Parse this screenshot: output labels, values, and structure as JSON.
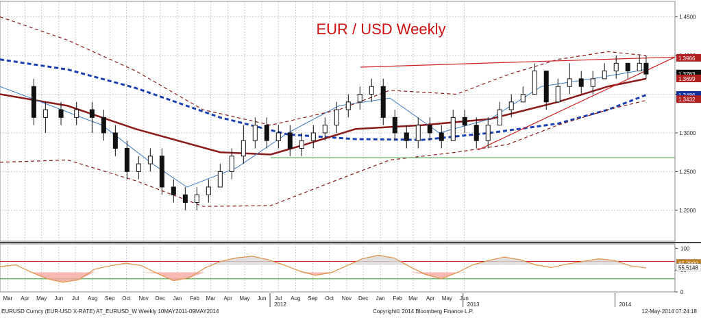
{
  "chart_data": [
    {
      "type": "candlestick",
      "title": "EUR / USD Weekly",
      "title_color": "#cc1111",
      "x_axis": {
        "month_labels": [
          "Mar",
          "Apr",
          "May",
          "Jun",
          "Jul",
          "Aug",
          "Sep",
          "Oct",
          "Nov",
          "Dec",
          "Jan",
          "Feb",
          "Mar",
          "Apr",
          "May",
          "Jun",
          "Jul",
          "Aug",
          "Sep",
          "Oct",
          "Nov",
          "Dec",
          "Jan",
          "Feb",
          "Mar",
          "Apr",
          "May",
          "Jun"
        ],
        "year_labels": [
          "2012",
          "2013",
          "2014"
        ],
        "range": [
          "2011-03-01",
          "2014-06-30"
        ]
      },
      "y_axis": {
        "ylim": [
          1.16,
          1.47
        ],
        "ticks": [
          "1.4500",
          "1.4000",
          "1.3500",
          "1.3000",
          "1.2500",
          "1.2000"
        ],
        "side": "right"
      },
      "grid": true,
      "price_tags": [
        {
          "label": "1.3966",
          "value": 1.3966,
          "bg": "#b02020",
          "fg": "#ffffff"
        },
        {
          "label": "1.3763",
          "value": 1.3763,
          "bg": "#111111",
          "fg": "#ffffff"
        },
        {
          "label": "1.3699",
          "value": 1.3699,
          "bg": "#b02020",
          "fg": "#ffffff"
        },
        {
          "label": "1.3486",
          "value": 1.3486,
          "bg": "#1030a0",
          "fg": "#ffffff"
        },
        {
          "label": "1.3432",
          "value": 1.3432,
          "bg": "#b02020",
          "fg": "#ffffff"
        }
      ],
      "candles": [
        {
          "date": "2011-05-01",
          "o": 1.36,
          "h": 1.37,
          "l": 1.31,
          "c": 1.32
        },
        {
          "date": "2011-05-22",
          "o": 1.32,
          "h": 1.34,
          "l": 1.3,
          "c": 1.33
        },
        {
          "date": "2011-06-19",
          "o": 1.33,
          "h": 1.34,
          "l": 1.31,
          "c": 1.32
        },
        {
          "date": "2011-07-17",
          "o": 1.32,
          "h": 1.34,
          "l": 1.31,
          "c": 1.33
        },
        {
          "date": "2011-08-14",
          "o": 1.33,
          "h": 1.34,
          "l": 1.3,
          "c": 1.32
        },
        {
          "date": "2011-09-04",
          "o": 1.32,
          "h": 1.33,
          "l": 1.29,
          "c": 1.3
        },
        {
          "date": "2011-09-25",
          "o": 1.3,
          "h": 1.31,
          "l": 1.27,
          "c": 1.28
        },
        {
          "date": "2011-10-16",
          "o": 1.28,
          "h": 1.29,
          "l": 1.24,
          "c": 1.25
        },
        {
          "date": "2011-11-06",
          "o": 1.25,
          "h": 1.27,
          "l": 1.24,
          "c": 1.26
        },
        {
          "date": "2011-11-27",
          "o": 1.26,
          "h": 1.28,
          "l": 1.25,
          "c": 1.27
        },
        {
          "date": "2011-12-18",
          "o": 1.27,
          "h": 1.28,
          "l": 1.22,
          "c": 1.23
        },
        {
          "date": "2012-01-08",
          "o": 1.23,
          "h": 1.24,
          "l": 1.21,
          "c": 1.22
        },
        {
          "date": "2012-01-29",
          "o": 1.22,
          "h": 1.23,
          "l": 1.2,
          "c": 1.21
        },
        {
          "date": "2012-02-19",
          "o": 1.21,
          "h": 1.23,
          "l": 1.2,
          "c": 1.22
        },
        {
          "date": "2012-03-11",
          "o": 1.22,
          "h": 1.24,
          "l": 1.21,
          "c": 1.23
        },
        {
          "date": "2012-04-01",
          "o": 1.23,
          "h": 1.26,
          "l": 1.23,
          "c": 1.25
        },
        {
          "date": "2012-04-22",
          "o": 1.25,
          "h": 1.28,
          "l": 1.24,
          "c": 1.27
        },
        {
          "date": "2012-05-13",
          "o": 1.27,
          "h": 1.31,
          "l": 1.26,
          "c": 1.29
        },
        {
          "date": "2012-06-03",
          "o": 1.29,
          "h": 1.32,
          "l": 1.28,
          "c": 1.31
        },
        {
          "date": "2012-06-24",
          "o": 1.31,
          "h": 1.32,
          "l": 1.28,
          "c": 1.29
        },
        {
          "date": "2012-07-15",
          "o": 1.29,
          "h": 1.31,
          "l": 1.28,
          "c": 1.3
        },
        {
          "date": "2012-08-05",
          "o": 1.3,
          "h": 1.31,
          "l": 1.27,
          "c": 1.28
        },
        {
          "date": "2012-08-26",
          "o": 1.28,
          "h": 1.3,
          "l": 1.27,
          "c": 1.29
        },
        {
          "date": "2012-09-16",
          "o": 1.29,
          "h": 1.31,
          "l": 1.28,
          "c": 1.3
        },
        {
          "date": "2012-10-07",
          "o": 1.3,
          "h": 1.32,
          "l": 1.29,
          "c": 1.31
        },
        {
          "date": "2012-10-28",
          "o": 1.31,
          "h": 1.34,
          "l": 1.3,
          "c": 1.33
        },
        {
          "date": "2012-11-18",
          "o": 1.33,
          "h": 1.35,
          "l": 1.32,
          "c": 1.34
        },
        {
          "date": "2012-12-09",
          "o": 1.34,
          "h": 1.36,
          "l": 1.33,
          "c": 1.35
        },
        {
          "date": "2012-12-30",
          "o": 1.35,
          "h": 1.37,
          "l": 1.34,
          "c": 1.36
        },
        {
          "date": "2013-01-20",
          "o": 1.36,
          "h": 1.37,
          "l": 1.31,
          "c": 1.32
        },
        {
          "date": "2013-02-10",
          "o": 1.32,
          "h": 1.33,
          "l": 1.29,
          "c": 1.3
        },
        {
          "date": "2013-03-03",
          "o": 1.3,
          "h": 1.31,
          "l": 1.28,
          "c": 1.29
        },
        {
          "date": "2013-03-24",
          "o": 1.29,
          "h": 1.32,
          "l": 1.28,
          "c": 1.31
        },
        {
          "date": "2013-04-14",
          "o": 1.31,
          "h": 1.32,
          "l": 1.29,
          "c": 1.3
        },
        {
          "date": "2013-05-05",
          "o": 1.3,
          "h": 1.31,
          "l": 1.28,
          "c": 1.29
        },
        {
          "date": "2013-05-26",
          "o": 1.29,
          "h": 1.33,
          "l": 1.29,
          "c": 1.32
        },
        {
          "date": "2013-06-16",
          "o": 1.32,
          "h": 1.33,
          "l": 1.3,
          "c": 1.31
        },
        {
          "date": "2013-07-07",
          "o": 1.31,
          "h": 1.32,
          "l": 1.28,
          "c": 1.29
        },
        {
          "date": "2013-07-28",
          "o": 1.29,
          "h": 1.32,
          "l": 1.28,
          "c": 1.31
        },
        {
          "date": "2013-08-18",
          "o": 1.31,
          "h": 1.34,
          "l": 1.31,
          "c": 1.33
        },
        {
          "date": "2013-09-08",
          "o": 1.33,
          "h": 1.35,
          "l": 1.32,
          "c": 1.34
        },
        {
          "date": "2013-09-29",
          "o": 1.34,
          "h": 1.36,
          "l": 1.34,
          "c": 1.35
        },
        {
          "date": "2013-10-20",
          "o": 1.35,
          "h": 1.39,
          "l": 1.35,
          "c": 1.38
        },
        {
          "date": "2013-11-10",
          "o": 1.38,
          "h": 1.38,
          "l": 1.33,
          "c": 1.34
        },
        {
          "date": "2013-12-01",
          "o": 1.34,
          "h": 1.37,
          "l": 1.34,
          "c": 1.36
        },
        {
          "date": "2013-12-22",
          "o": 1.36,
          "h": 1.39,
          "l": 1.35,
          "c": 1.37
        },
        {
          "date": "2014-01-12",
          "o": 1.37,
          "h": 1.38,
          "l": 1.35,
          "c": 1.36
        },
        {
          "date": "2014-02-02",
          "o": 1.36,
          "h": 1.38,
          "l": 1.35,
          "c": 1.37
        },
        {
          "date": "2014-02-23",
          "o": 1.37,
          "h": 1.39,
          "l": 1.37,
          "c": 1.38
        },
        {
          "date": "2014-03-16",
          "o": 1.38,
          "h": 1.4,
          "l": 1.37,
          "c": 1.39
        },
        {
          "date": "2014-04-06",
          "o": 1.39,
          "h": 1.39,
          "l": 1.37,
          "c": 1.38
        },
        {
          "date": "2014-04-27",
          "o": 1.38,
          "h": 1.4,
          "l": 1.38,
          "c": 1.39
        },
        {
          "date": "2014-05-09",
          "o": 1.39,
          "h": 1.4,
          "l": 1.37,
          "c": 1.376
        }
      ],
      "series": [
        {
          "kind": "ma_dashed",
          "color": "#1a3fb0",
          "points": [
            [
              "2011-03-01",
              1.395
            ],
            [
              "2011-07-01",
              1.382
            ],
            [
              "2011-11-01",
              1.358
            ],
            [
              "2012-04-01",
              1.32
            ],
            [
              "2012-08-01",
              1.298
            ],
            [
              "2012-12-01",
              1.292
            ],
            [
              "2013-04-01",
              1.291
            ],
            [
              "2013-08-01",
              1.3
            ],
            [
              "2013-12-01",
              1.312
            ],
            [
              "2014-03-01",
              1.33
            ],
            [
              "2014-05-09",
              1.349
            ]
          ]
        },
        {
          "kind": "ma_solid",
          "color": "#8b1a1a",
          "points": [
            [
              "2011-03-01",
              1.35
            ],
            [
              "2011-07-01",
              1.335
            ],
            [
              "2011-11-01",
              1.305
            ],
            [
              "2012-04-01",
              1.275
            ],
            [
              "2012-07-01",
              1.272
            ],
            [
              "2012-09-01",
              1.285
            ],
            [
              "2012-12-01",
              1.305
            ],
            [
              "2013-04-01",
              1.31
            ],
            [
              "2013-08-01",
              1.318
            ],
            [
              "2013-12-01",
              1.34
            ],
            [
              "2014-03-01",
              1.36
            ],
            [
              "2014-05-09",
              1.37
            ]
          ]
        },
        {
          "kind": "ma_fast",
          "color": "#3a7ac0",
          "points": [
            [
              "2011-03-01",
              1.36
            ],
            [
              "2011-06-01",
              1.335
            ],
            [
              "2011-09-01",
              1.31
            ],
            [
              "2011-12-01",
              1.26
            ],
            [
              "2012-02-01",
              1.23
            ],
            [
              "2012-05-01",
              1.255
            ],
            [
              "2012-08-01",
              1.3
            ],
            [
              "2012-11-01",
              1.335
            ],
            [
              "2013-02-01",
              1.345
            ],
            [
              "2013-05-01",
              1.3
            ],
            [
              "2013-08-01",
              1.318
            ],
            [
              "2013-11-01",
              1.36
            ],
            [
              "2014-02-01",
              1.37
            ],
            [
              "2014-05-09",
              1.382
            ]
          ]
        },
        {
          "kind": "band_upper",
          "color": "#8b1a1a",
          "points": [
            [
              "2011-03-01",
              1.45
            ],
            [
              "2011-07-01",
              1.42
            ],
            [
              "2011-11-01",
              1.38
            ],
            [
              "2012-03-01",
              1.33
            ],
            [
              "2012-07-01",
              1.31
            ],
            [
              "2012-11-01",
              1.33
            ],
            [
              "2013-02-01",
              1.355
            ],
            [
              "2013-06-01",
              1.35
            ],
            [
              "2013-09-01",
              1.375
            ],
            [
              "2013-12-01",
              1.395
            ],
            [
              "2014-03-01",
              1.405
            ],
            [
              "2014-05-09",
              1.4
            ]
          ]
        },
        {
          "kind": "band_lower",
          "color": "#8b1a1a",
          "points": [
            [
              "2011-03-01",
              1.262
            ],
            [
              "2011-07-01",
              1.265
            ],
            [
              "2011-11-01",
              1.238
            ],
            [
              "2012-03-01",
              1.205
            ],
            [
              "2012-07-01",
              1.206
            ],
            [
              "2012-11-01",
              1.24
            ],
            [
              "2013-02-01",
              1.265
            ],
            [
              "2013-06-01",
              1.275
            ],
            [
              "2013-09-01",
              1.285
            ],
            [
              "2013-12-01",
              1.31
            ],
            [
              "2014-03-01",
              1.33
            ],
            [
              "2014-05-09",
              1.342
            ]
          ]
        }
      ],
      "trendlines": [
        {
          "color": "#cc2222",
          "points": [
            [
              "2012-12-10",
              1.385
            ],
            [
              "2014-06-30",
              1.398
            ]
          ]
        },
        {
          "color": "#cc2222",
          "points": [
            [
              "2013-07-10",
              1.278
            ],
            [
              "2014-06-30",
              1.398
            ]
          ]
        },
        {
          "color": "#60b060",
          "points": [
            [
              "2012-07-01",
              1.268
            ],
            [
              "2014-06-30",
              1.268
            ]
          ]
        }
      ],
      "oscillator": {
        "ylim": [
          0,
          110
        ],
        "ticks": [
          "100",
          "50",
          "0"
        ],
        "levels": [
          {
            "value": 70,
            "color": "#cc2222"
          },
          {
            "value": 30,
            "color": "#2a9a2a"
          }
        ],
        "tags": [
          {
            "label": "65.3000",
            "value": 65.3,
            "bg": "#c08020",
            "fg": "#ffffff"
          },
          {
            "label": "55.5148",
            "value": 55.5,
            "bg": "#ffffff",
            "fg": "#000000"
          }
        ],
        "line_color": "#e09040",
        "values": [
          58,
          62,
          45,
          30,
          22,
          28,
          52,
          60,
          66,
          60,
          42,
          26,
          32,
          55,
          70,
          78,
          82,
          74,
          62,
          48,
          38,
          44,
          60,
          76,
          84,
          78,
          58,
          40,
          30,
          44,
          62,
          72,
          80,
          74,
          62,
          56,
          64,
          70,
          76,
          72,
          60,
          55
        ]
      }
    }
  ],
  "footer": {
    "left": "EURUSD Curncy (EUR-USD X-RATE) AT_EURUSD_W  Weekly 10MAY2011-09MAY2014",
    "center": "Copyright© 2014 Bloomberg Finance L.P.",
    "right": "12-May-2014 07:24:18"
  }
}
